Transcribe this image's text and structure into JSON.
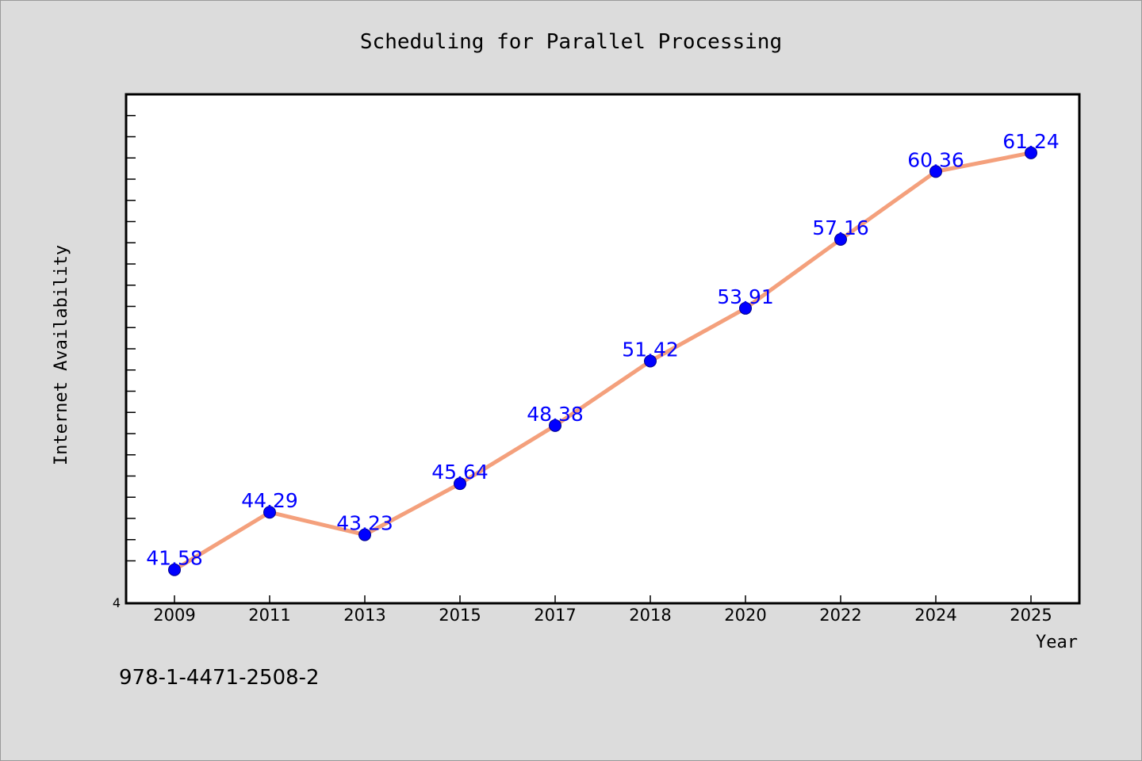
{
  "chart_data": {
    "type": "line",
    "title": "Scheduling for Parallel Processing",
    "xlabel": "Year",
    "ylabel": "Internet Availability",
    "categories": [
      "2009",
      "2011",
      "2013",
      "2015",
      "2017",
      "2018",
      "2020",
      "2022",
      "2024",
      "2025"
    ],
    "series": [
      {
        "values": [
          41.58,
          44.29,
          43.23,
          45.64,
          48.38,
          51.42,
          53.91,
          57.16,
          60.36,
          61.24
        ],
        "labels": [
          "41.58",
          "44.29",
          "43.23",
          "45.64",
          "48.38",
          "51.42",
          "53.91",
          "57.16",
          "60.36",
          "61.24"
        ],
        "line_color": "#f4a07c",
        "marker_color": "#0000ff"
      }
    ],
    "ylim": [
      40,
      64
    ],
    "y_tick_label": "4",
    "grid": false,
    "legend": "none"
  },
  "footnote": "978-1-4471-2508-2"
}
